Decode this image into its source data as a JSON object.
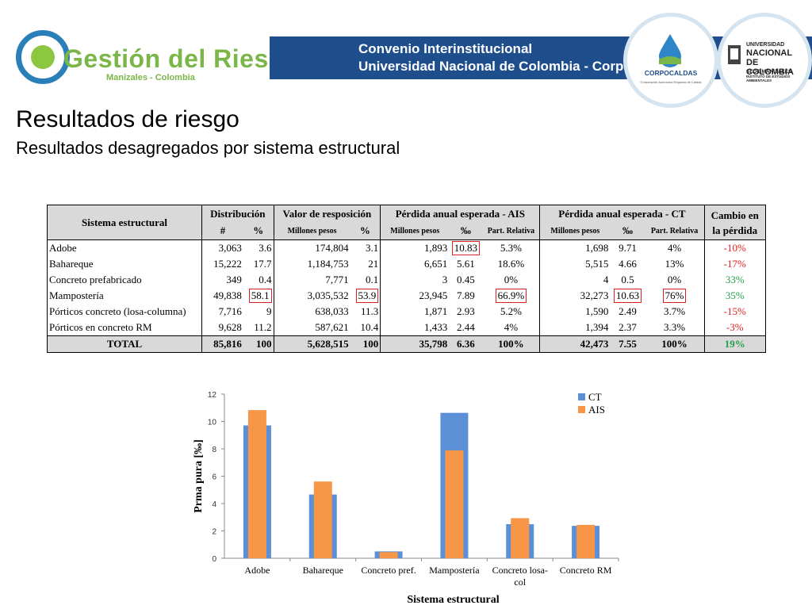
{
  "header": {
    "logo_main": "Gestión del Riesgo",
    "logo_sub": "Manizales - Colombia",
    "banner_line1": "Convenio Interinstitucional",
    "banner_line2": "Universidad Nacional de Colombia - Corpocaldas",
    "corpocaldas_name": "CORPOCALDAS",
    "corpocaldas_tagline": "Corporación Autónoma Regional de Caldas",
    "un_line1": "UNIVERSIDAD",
    "un_line2": "NACIONAL",
    "un_line3": "DE COLOMBIA",
    "un_line4": "SEDE MANIZALES",
    "un_line5": "INSTITUTO DE ESTUDIOS AMBIENTALES"
  },
  "title": "Resultados de riesgo",
  "subtitle": "Resultados desagregados por sistema estructural",
  "table": {
    "h_sistema": "Sistema estructural",
    "h_dist": "Distribución",
    "h_valor": "Valor de resposición",
    "h_ais": "Pérdida anual esperada - AIS",
    "h_ct": "Pérdida anual esperada - CT",
    "h_cambio": "Cambio en la pérdida",
    "sh_num": "#",
    "sh_pct": "%",
    "sh_mill": "Millones pesos",
    "sh_pm": "‰",
    "sh_part": "Part. Relativa",
    "rows": [
      {
        "name": "Adobe",
        "n": "3,063",
        "p": "3.6",
        "v": "174,804",
        "vp": "3.1",
        "a_m": "1,893",
        "a_pm": "10.83",
        "a_pr": "5.3%",
        "c_m": "1,698",
        "c_pm": "9.71",
        "c_pr": "4%",
        "cambio": "-10%"
      },
      {
        "name": "Bahareque",
        "n": "15,222",
        "p": "17.7",
        "v": "1,184,753",
        "vp": "21",
        "a_m": "6,651",
        "a_pm": "5.61",
        "a_pr": "18.6%",
        "c_m": "5,515",
        "c_pm": "4.66",
        "c_pr": "13%",
        "cambio": "-17%"
      },
      {
        "name": "Concreto prefabricado",
        "n": "349",
        "p": "0.4",
        "v": "7,771",
        "vp": "0.1",
        "a_m": "3",
        "a_pm": "0.45",
        "a_pr": "0%",
        "c_m": "4",
        "c_pm": "0.5",
        "c_pr": "0%",
        "cambio": "33%"
      },
      {
        "name": "Mampostería",
        "n": "49,838",
        "p": "58.1",
        "v": "3,035,532",
        "vp": "53.9",
        "a_m": "23,945",
        "a_pm": "7.89",
        "a_pr": "66.9%",
        "c_m": "32,273",
        "c_pm": "10.63",
        "c_pr": "76%",
        "cambio": "35%"
      },
      {
        "name": "Pórticos concreto (losa-columna)",
        "n": "7,716",
        "p": "9",
        "v": "638,033",
        "vp": "11.3",
        "a_m": "1,871",
        "a_pm": "2.93",
        "a_pr": "5.2%",
        "c_m": "1,590",
        "c_pm": "2.49",
        "c_pr": "3.7%",
        "cambio": "-15%"
      },
      {
        "name": "Pórticos en concreto RM",
        "n": "9,628",
        "p": "11.2",
        "v": "587,621",
        "vp": "10.4",
        "a_m": "1,433",
        "a_pm": "2.44",
        "a_pr": "4%",
        "c_m": "1,394",
        "c_pm": "2.37",
        "c_pr": "3.3%",
        "cambio": "-3%"
      }
    ],
    "total": {
      "name": "TOTAL",
      "n": "85,816",
      "p": "100",
      "v": "5,628,515",
      "vp": "100",
      "a_m": "35,798",
      "a_pm": "6.36",
      "a_pr": "100%",
      "c_m": "42,473",
      "c_pm": "7.55",
      "c_pr": "100%",
      "cambio": "19%"
    },
    "colors": {
      "negative": "#e02020",
      "positive": "#22a04a",
      "highlight_box": "#e02020",
      "header_bg": "#d9d9d9"
    }
  },
  "chart_data": {
    "type": "bar",
    "categories": [
      "Adobe",
      "Bahareque",
      "Concreto pref.",
      "Mampostería",
      "Concreto losa-col",
      "Concreto RM"
    ],
    "category_lines": [
      [
        "Adobe"
      ],
      [
        "Bahareque"
      ],
      [
        "Concreto pref."
      ],
      [
        "Mampostería"
      ],
      [
        "Concreto losa-",
        "col"
      ],
      [
        "Concreto RM"
      ]
    ],
    "series": [
      {
        "name": "CT",
        "values": [
          9.71,
          4.66,
          0.5,
          10.63,
          2.49,
          2.37
        ],
        "color": "#5b8fd6"
      },
      {
        "name": "AIS",
        "values": [
          10.83,
          5.61,
          0.45,
          7.89,
          2.93,
          2.44
        ],
        "color": "#f79646"
      }
    ],
    "xlabel": "Sistema estructural",
    "ylabel": "Prma pura [‰]",
    "ylim": [
      0,
      12
    ],
    "yticks": [
      0,
      2,
      4,
      6,
      8,
      10,
      12
    ],
    "grid": false,
    "legend": "top-right",
    "overlaid_bars": true
  }
}
